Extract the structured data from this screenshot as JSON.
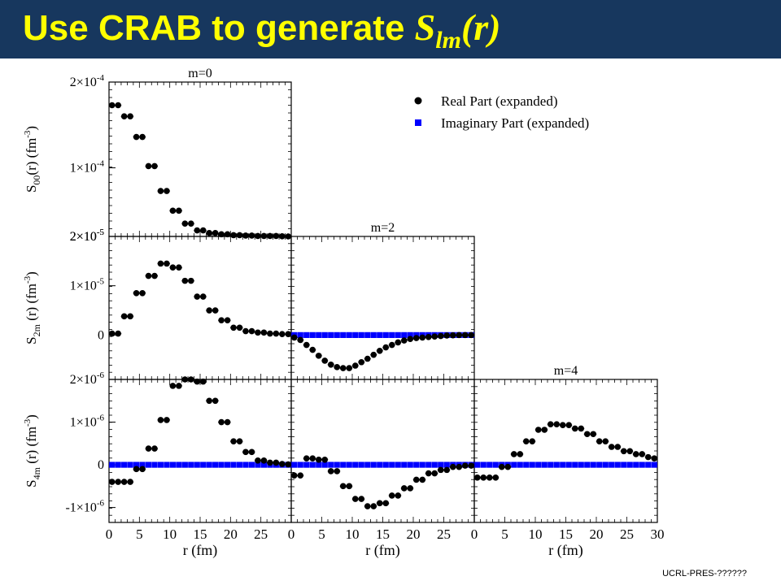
{
  "header": {
    "title_prefix": "Use CRAB to generate ",
    "title_symbol": "S",
    "title_subscript": "lm",
    "title_arg": "(r)",
    "text_color": "#ffff00",
    "bar_color": "#17375e"
  },
  "footer": {
    "text": "UCRL-PRES-??????"
  },
  "legend": {
    "position": "top-right",
    "entries": [
      {
        "label": "Real Part (expanded)",
        "marker": "circle",
        "color": "#000000"
      },
      {
        "label": "Imaginary Part (expanded)",
        "marker": "square",
        "color": "#0000ff"
      }
    ]
  },
  "chart_data": [
    {
      "type": "scatter",
      "title": "m=0",
      "ylabel": {
        "main": "S",
        "sub": "00",
        "rest": "(r) (fm",
        "sup": "-3",
        "close": ")"
      },
      "xlabel": "",
      "xlim": [
        0,
        30
      ],
      "ylim": [
        0.2,
        2.0
      ],
      "y_unit_exp": -4,
      "yticks": [
        {
          "value": 2.0,
          "label": "2×10",
          "sup": "-4"
        },
        {
          "value": 1.0,
          "label": "1×10",
          "sup": "-4"
        },
        {
          "value": 0.2,
          "label": "2×10",
          "sup": "-5"
        }
      ],
      "xticks": [],
      "series": [
        {
          "name": "Real Part (expanded)",
          "marker": "circle",
          "color": "#000000",
          "x": [
            0.5,
            1.5,
            2.5,
            3.5,
            4.5,
            5.5,
            6.5,
            7.5,
            8.5,
            9.5,
            10.5,
            11.5,
            12.5,
            13.5,
            14.5,
            15.5,
            16.5,
            17.5,
            18.5,
            19.5,
            20.5,
            21.5,
            22.5,
            23.5,
            24.5,
            25.5,
            26.5,
            27.5,
            28.5,
            29.5
          ],
          "y": [
            1.73,
            1.73,
            1.6,
            1.6,
            1.36,
            1.36,
            1.02,
            1.02,
            0.73,
            0.73,
            0.5,
            0.5,
            0.35,
            0.35,
            0.27,
            0.27,
            0.24,
            0.24,
            0.225,
            0.225,
            0.215,
            0.215,
            0.21,
            0.21,
            0.205,
            0.205,
            0.205,
            0.205,
            0.202,
            0.2
          ]
        }
      ]
    },
    {
      "type": "scatter",
      "title": "",
      "ylabel": {
        "main": "S",
        "sub": "2m",
        "rest": " (r) (fm",
        "sup": "-3",
        "close": ")"
      },
      "xlabel": "",
      "xlim": [
        0,
        30
      ],
      "ylim": [
        -0.9,
        2.0
      ],
      "y_unit_exp": -5,
      "yticks": [
        {
          "value": 2.0,
          "label": "2×10",
          "sup": "-5"
        },
        {
          "value": 1.0,
          "label": "1×10",
          "sup": "-5"
        },
        {
          "value": 0,
          "label": "0",
          "sup": ""
        }
      ],
      "xticks": [],
      "series": [
        {
          "name": "Real Part (expanded)",
          "marker": "circle",
          "color": "#000000",
          "x": [
            0.5,
            1.5,
            2.5,
            3.5,
            4.5,
            5.5,
            6.5,
            7.5,
            8.5,
            9.5,
            10.5,
            11.5,
            12.5,
            13.5,
            14.5,
            15.5,
            16.5,
            17.5,
            18.5,
            19.5,
            20.5,
            21.5,
            22.5,
            23.5,
            24.5,
            25.5,
            26.5,
            27.5,
            28.5,
            29.5
          ],
          "y": [
            0.03,
            0.03,
            0.38,
            0.38,
            0.85,
            0.85,
            1.2,
            1.2,
            1.45,
            1.45,
            1.37,
            1.37,
            1.1,
            1.1,
            0.78,
            0.78,
            0.5,
            0.5,
            0.3,
            0.3,
            0.15,
            0.15,
            0.08,
            0.08,
            0.05,
            0.05,
            0.03,
            0.03,
            0.02,
            0.02
          ]
        }
      ]
    },
    {
      "type": "scatter",
      "title": "m=2",
      "ylabel": null,
      "xlabel": "",
      "xlim": [
        0,
        30
      ],
      "ylim": [
        -0.9,
        2.0
      ],
      "yticks": [],
      "xticks": [],
      "series": [
        {
          "name": "Real Part (expanded)",
          "marker": "circle",
          "color": "#000000",
          "x": [
            0.5,
            1.5,
            2.5,
            3.5,
            4.5,
            5.5,
            6.5,
            7.5,
            8.5,
            9.5,
            10.5,
            11.5,
            12.5,
            13.5,
            14.5,
            15.5,
            16.5,
            17.5,
            18.5,
            19.5,
            20.5,
            21.5,
            22.5,
            23.5,
            24.5,
            25.5,
            26.5,
            27.5,
            28.5,
            29.5
          ],
          "y": [
            -0.05,
            -0.1,
            -0.2,
            -0.3,
            -0.42,
            -0.52,
            -0.6,
            -0.65,
            -0.67,
            -0.67,
            -0.62,
            -0.55,
            -0.48,
            -0.4,
            -0.32,
            -0.25,
            -0.2,
            -0.15,
            -0.11,
            -0.08,
            -0.06,
            -0.05,
            -0.04,
            -0.03,
            -0.02,
            -0.01,
            -0.005,
            0,
            0,
            0
          ]
        },
        {
          "name": "Imaginary Part (expanded)",
          "marker": "square",
          "color": "#0000ff",
          "x": [
            0.5,
            1.5,
            2.5,
            3.5,
            4.5,
            5.5,
            6.5,
            7.5,
            8.5,
            9.5,
            10.5,
            11.5,
            12.5,
            13.5,
            14.5,
            15.5,
            16.5,
            17.5,
            18.5,
            19.5,
            20.5,
            21.5,
            22.5,
            23.5,
            24.5,
            25.5,
            26.5,
            27.5,
            28.5,
            29.5
          ],
          "y": [
            0,
            0,
            0,
            0,
            0,
            0,
            0,
            0,
            0,
            0,
            0,
            0,
            0,
            0,
            0,
            0,
            0,
            0,
            0,
            0,
            0,
            0,
            0,
            0,
            0,
            0,
            0,
            0,
            0,
            0
          ]
        }
      ]
    },
    {
      "type": "scatter",
      "title": "",
      "ylabel": {
        "main": "S",
        "sub": "4m",
        "rest": " (r) (fm",
        "sup": "-3",
        "close": ")"
      },
      "xlabel": "r (fm)",
      "xlim": [
        0,
        30
      ],
      "ylim": [
        -1.35,
        2.0
      ],
      "y_unit_exp": -6,
      "yticks": [
        {
          "value": 2.0,
          "label": "2×10",
          "sup": "-6"
        },
        {
          "value": 1.0,
          "label": "1×10",
          "sup": "-6"
        },
        {
          "value": 0,
          "label": "0",
          "sup": ""
        },
        {
          "value": -1.0,
          "label": "-1×10",
          "sup": "-6"
        }
      ],
      "xticks": [
        {
          "value": 0,
          "label": "0"
        },
        {
          "value": 5,
          "label": "5"
        },
        {
          "value": 10,
          "label": "10"
        },
        {
          "value": 15,
          "label": "15"
        },
        {
          "value": 20,
          "label": "20"
        },
        {
          "value": 25,
          "label": "25"
        }
      ],
      "series": [
        {
          "name": "Real Part (expanded)",
          "marker": "circle",
          "color": "#000000",
          "x": [
            0.5,
            1.5,
            2.5,
            3.5,
            4.5,
            5.5,
            6.5,
            7.5,
            8.5,
            9.5,
            10.5,
            11.5,
            12.5,
            13.5,
            14.5,
            15.5,
            16.5,
            17.5,
            18.5,
            19.5,
            20.5,
            21.5,
            22.5,
            23.5,
            24.5,
            25.5,
            26.5,
            27.5,
            28.5,
            29.5
          ],
          "y": [
            -0.4,
            -0.4,
            -0.4,
            -0.4,
            -0.1,
            -0.1,
            0.38,
            0.38,
            1.05,
            1.05,
            1.85,
            1.85,
            2.0,
            2.0,
            1.95,
            1.95,
            1.5,
            1.5,
            1.0,
            1.0,
            0.55,
            0.55,
            0.3,
            0.3,
            0.1,
            0.1,
            0.05,
            0.05,
            0.02,
            0.01
          ]
        },
        {
          "name": "Imaginary Part (expanded)",
          "marker": "square",
          "color": "#0000ff",
          "x": [
            0.5,
            1.5,
            2.5,
            3.5,
            4.5,
            5.5,
            6.5,
            7.5,
            8.5,
            9.5,
            10.5,
            11.5,
            12.5,
            13.5,
            14.5,
            15.5,
            16.5,
            17.5,
            18.5,
            19.5,
            20.5,
            21.5,
            22.5,
            23.5,
            24.5,
            25.5,
            26.5,
            27.5,
            28.5,
            29.5
          ],
          "y": [
            0,
            0,
            0,
            0,
            0,
            0,
            0,
            0,
            0,
            0,
            0,
            0,
            0,
            0,
            0,
            0,
            0,
            0,
            0,
            0,
            0,
            0,
            0,
            0,
            0,
            0,
            0,
            0,
            0,
            0
          ]
        }
      ]
    },
    {
      "type": "scatter",
      "title": "",
      "ylabel": null,
      "xlabel": "r (fm)",
      "xlim": [
        0,
        30
      ],
      "ylim": [
        -1.35,
        2.0
      ],
      "yticks": [],
      "xticks": [
        {
          "value": 0,
          "label": "0"
        },
        {
          "value": 5,
          "label": "5"
        },
        {
          "value": 10,
          "label": "10"
        },
        {
          "value": 15,
          "label": "15"
        },
        {
          "value": 20,
          "label": "20"
        },
        {
          "value": 25,
          "label": "25"
        }
      ],
      "series": [
        {
          "name": "Real Part (expanded)",
          "marker": "circle",
          "color": "#000000",
          "x": [
            0.5,
            1.5,
            2.5,
            3.5,
            4.5,
            5.5,
            6.5,
            7.5,
            8.5,
            9.5,
            10.5,
            11.5,
            12.5,
            13.5,
            14.5,
            15.5,
            16.5,
            17.5,
            18.5,
            19.5,
            20.5,
            21.5,
            22.5,
            23.5,
            24.5,
            25.5,
            26.5,
            27.5,
            28.5,
            29.5
          ],
          "y": [
            -0.25,
            -0.25,
            0.15,
            0.15,
            0.12,
            0.12,
            -0.15,
            -0.15,
            -0.5,
            -0.5,
            -0.8,
            -0.8,
            -0.97,
            -0.97,
            -0.9,
            -0.9,
            -0.72,
            -0.72,
            -0.55,
            -0.55,
            -0.35,
            -0.35,
            -0.2,
            -0.2,
            -0.12,
            -0.12,
            -0.05,
            -0.05,
            -0.02,
            -0.02
          ]
        },
        {
          "name": "Imaginary Part (expanded)",
          "marker": "square",
          "color": "#0000ff",
          "x": [
            0.5,
            1.5,
            2.5,
            3.5,
            4.5,
            5.5,
            6.5,
            7.5,
            8.5,
            9.5,
            10.5,
            11.5,
            12.5,
            13.5,
            14.5,
            15.5,
            16.5,
            17.5,
            18.5,
            19.5,
            20.5,
            21.5,
            22.5,
            23.5,
            24.5,
            25.5,
            26.5,
            27.5,
            28.5,
            29.5
          ],
          "y": [
            0,
            0,
            0,
            0,
            0,
            0,
            0,
            0,
            0,
            0,
            0,
            0,
            0,
            0,
            0,
            0,
            0,
            0,
            0,
            0,
            0,
            0,
            0,
            0,
            0,
            0,
            0,
            0,
            0,
            0
          ]
        }
      ]
    },
    {
      "type": "scatter",
      "title": "m=4",
      "ylabel": null,
      "xlabel": "r (fm)",
      "xlim": [
        0,
        30
      ],
      "ylim": [
        -1.35,
        2.0
      ],
      "yticks": [],
      "xticks": [
        {
          "value": 0,
          "label": "0"
        },
        {
          "value": 5,
          "label": "5"
        },
        {
          "value": 10,
          "label": "10"
        },
        {
          "value": 15,
          "label": "15"
        },
        {
          "value": 20,
          "label": "20"
        },
        {
          "value": 25,
          "label": "25"
        },
        {
          "value": 30,
          "label": "30"
        }
      ],
      "series": [
        {
          "name": "Real Part (expanded)",
          "marker": "circle",
          "color": "#000000",
          "x": [
            0.5,
            1.5,
            2.5,
            3.5,
            4.5,
            5.5,
            6.5,
            7.5,
            8.5,
            9.5,
            10.5,
            11.5,
            12.5,
            13.5,
            14.5,
            15.5,
            16.5,
            17.5,
            18.5,
            19.5,
            20.5,
            21.5,
            22.5,
            23.5,
            24.5,
            25.5,
            26.5,
            27.5,
            28.5,
            29.5
          ],
          "y": [
            -0.3,
            -0.3,
            -0.3,
            -0.3,
            -0.05,
            -0.05,
            0.25,
            0.25,
            0.55,
            0.55,
            0.82,
            0.82,
            0.95,
            0.95,
            0.93,
            0.93,
            0.85,
            0.85,
            0.72,
            0.72,
            0.55,
            0.55,
            0.42,
            0.42,
            0.32,
            0.32,
            0.25,
            0.25,
            0.18,
            0.15
          ]
        },
        {
          "name": "Imaginary Part (expanded)",
          "marker": "square",
          "color": "#0000ff",
          "x": [
            0.5,
            1.5,
            2.5,
            3.5,
            4.5,
            5.5,
            6.5,
            7.5,
            8.5,
            9.5,
            10.5,
            11.5,
            12.5,
            13.5,
            14.5,
            15.5,
            16.5,
            17.5,
            18.5,
            19.5,
            20.5,
            21.5,
            22.5,
            23.5,
            24.5,
            25.5,
            26.5,
            27.5,
            28.5,
            29.5
          ],
          "y": [
            0,
            0,
            0,
            0,
            0,
            0,
            0,
            0,
            0,
            0,
            0,
            0,
            0,
            0,
            0,
            0,
            0,
            0,
            0,
            0,
            0,
            0,
            0,
            0,
            0,
            0,
            0,
            0,
            0,
            0
          ]
        }
      ]
    }
  ]
}
